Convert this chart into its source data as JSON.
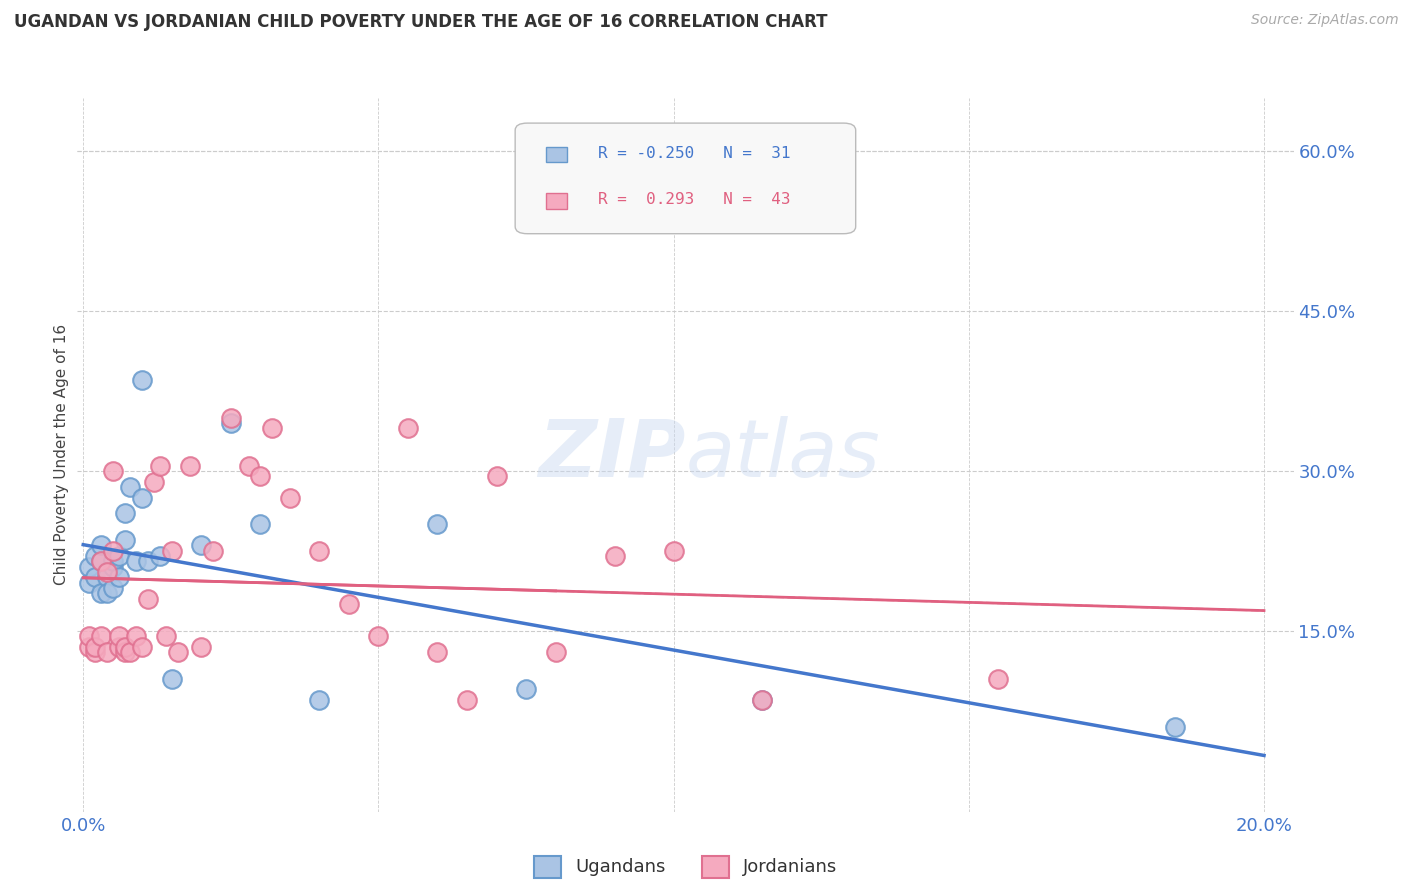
{
  "title": "UGANDAN VS JORDANIAN CHILD POVERTY UNDER THE AGE OF 16 CORRELATION CHART",
  "source": "Source: ZipAtlas.com",
  "ylabel": "Child Poverty Under the Age of 16",
  "xlim": [
    -0.001,
    0.205
  ],
  "ylim": [
    -0.02,
    0.65
  ],
  "xticks": [
    0.0,
    0.05,
    0.1,
    0.15,
    0.2
  ],
  "xtick_labels_show": [
    "0.0%",
    "20.0%"
  ],
  "yticks_right": [
    0.15,
    0.3,
    0.45,
    0.6
  ],
  "ytick_labels_right": [
    "15.0%",
    "30.0%",
    "45.0%",
    "60.0%"
  ],
  "background_color": "#ffffff",
  "grid_color": "#cccccc",
  "ugandans_color": "#aac4e4",
  "ugandans_edge": "#6699cc",
  "jordanians_color": "#f5aabf",
  "jordanians_edge": "#e07090",
  "ugandans_label": "Ugandans",
  "jordanians_label": "Jordanians",
  "watermark": "ZIPatlas",
  "trend_uganda_color": "#4477cc",
  "trend_jordan_color": "#e06080",
  "ugandans_x": [
    0.001,
    0.001,
    0.002,
    0.002,
    0.003,
    0.003,
    0.003,
    0.004,
    0.004,
    0.005,
    0.005,
    0.005,
    0.006,
    0.006,
    0.007,
    0.007,
    0.008,
    0.009,
    0.01,
    0.01,
    0.011,
    0.013,
    0.015,
    0.02,
    0.025,
    0.03,
    0.04,
    0.06,
    0.075,
    0.115,
    0.185
  ],
  "ugandans_y": [
    0.195,
    0.21,
    0.2,
    0.22,
    0.185,
    0.215,
    0.23,
    0.2,
    0.185,
    0.21,
    0.215,
    0.19,
    0.22,
    0.2,
    0.235,
    0.26,
    0.285,
    0.215,
    0.275,
    0.385,
    0.215,
    0.22,
    0.105,
    0.23,
    0.345,
    0.25,
    0.085,
    0.25,
    0.095,
    0.085,
    0.06
  ],
  "jordanians_x": [
    0.001,
    0.001,
    0.002,
    0.002,
    0.003,
    0.003,
    0.004,
    0.004,
    0.005,
    0.005,
    0.006,
    0.006,
    0.007,
    0.007,
    0.008,
    0.009,
    0.01,
    0.011,
    0.012,
    0.013,
    0.014,
    0.015,
    0.016,
    0.018,
    0.02,
    0.022,
    0.025,
    0.028,
    0.03,
    0.032,
    0.035,
    0.04,
    0.045,
    0.05,
    0.055,
    0.06,
    0.065,
    0.07,
    0.08,
    0.09,
    0.1,
    0.115,
    0.155
  ],
  "jordanians_y": [
    0.135,
    0.145,
    0.13,
    0.135,
    0.215,
    0.145,
    0.13,
    0.205,
    0.225,
    0.3,
    0.135,
    0.145,
    0.13,
    0.135,
    0.13,
    0.145,
    0.135,
    0.18,
    0.29,
    0.305,
    0.145,
    0.225,
    0.13,
    0.305,
    0.135,
    0.225,
    0.35,
    0.305,
    0.295,
    0.34,
    0.275,
    0.225,
    0.175,
    0.145,
    0.34,
    0.13,
    0.085,
    0.295,
    0.13,
    0.22,
    0.225,
    0.085,
    0.105
  ]
}
